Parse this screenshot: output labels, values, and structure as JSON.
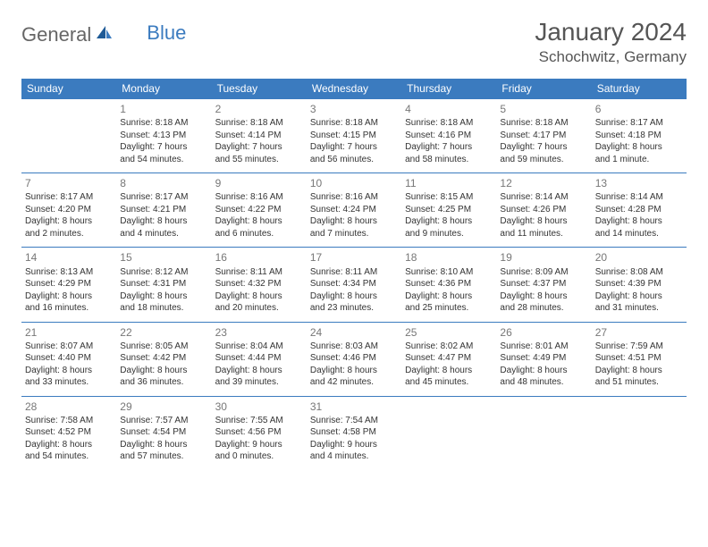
{
  "logo": {
    "general": "General",
    "blue": "Blue"
  },
  "title": "January 2024",
  "location": "Schochwitz, Germany",
  "colors": {
    "header_bg": "#3b7bbf",
    "header_text": "#ffffff",
    "border": "#3b7bbf",
    "body_text": "#333333",
    "daynum": "#777777"
  },
  "days": [
    "Sunday",
    "Monday",
    "Tuesday",
    "Wednesday",
    "Thursday",
    "Friday",
    "Saturday"
  ],
  "weeks": [
    [
      null,
      {
        "n": "1",
        "sr": "8:18 AM",
        "ss": "4:13 PM",
        "dl": "7 hours and 54 minutes."
      },
      {
        "n": "2",
        "sr": "8:18 AM",
        "ss": "4:14 PM",
        "dl": "7 hours and 55 minutes."
      },
      {
        "n": "3",
        "sr": "8:18 AM",
        "ss": "4:15 PM",
        "dl": "7 hours and 56 minutes."
      },
      {
        "n": "4",
        "sr": "8:18 AM",
        "ss": "4:16 PM",
        "dl": "7 hours and 58 minutes."
      },
      {
        "n": "5",
        "sr": "8:18 AM",
        "ss": "4:17 PM",
        "dl": "7 hours and 59 minutes."
      },
      {
        "n": "6",
        "sr": "8:17 AM",
        "ss": "4:18 PM",
        "dl": "8 hours and 1 minute."
      }
    ],
    [
      {
        "n": "7",
        "sr": "8:17 AM",
        "ss": "4:20 PM",
        "dl": "8 hours and 2 minutes."
      },
      {
        "n": "8",
        "sr": "8:17 AM",
        "ss": "4:21 PM",
        "dl": "8 hours and 4 minutes."
      },
      {
        "n": "9",
        "sr": "8:16 AM",
        "ss": "4:22 PM",
        "dl": "8 hours and 6 minutes."
      },
      {
        "n": "10",
        "sr": "8:16 AM",
        "ss": "4:24 PM",
        "dl": "8 hours and 7 minutes."
      },
      {
        "n": "11",
        "sr": "8:15 AM",
        "ss": "4:25 PM",
        "dl": "8 hours and 9 minutes."
      },
      {
        "n": "12",
        "sr": "8:14 AM",
        "ss": "4:26 PM",
        "dl": "8 hours and 11 minutes."
      },
      {
        "n": "13",
        "sr": "8:14 AM",
        "ss": "4:28 PM",
        "dl": "8 hours and 14 minutes."
      }
    ],
    [
      {
        "n": "14",
        "sr": "8:13 AM",
        "ss": "4:29 PM",
        "dl": "8 hours and 16 minutes."
      },
      {
        "n": "15",
        "sr": "8:12 AM",
        "ss": "4:31 PM",
        "dl": "8 hours and 18 minutes."
      },
      {
        "n": "16",
        "sr": "8:11 AM",
        "ss": "4:32 PM",
        "dl": "8 hours and 20 minutes."
      },
      {
        "n": "17",
        "sr": "8:11 AM",
        "ss": "4:34 PM",
        "dl": "8 hours and 23 minutes."
      },
      {
        "n": "18",
        "sr": "8:10 AM",
        "ss": "4:36 PM",
        "dl": "8 hours and 25 minutes."
      },
      {
        "n": "19",
        "sr": "8:09 AM",
        "ss": "4:37 PM",
        "dl": "8 hours and 28 minutes."
      },
      {
        "n": "20",
        "sr": "8:08 AM",
        "ss": "4:39 PM",
        "dl": "8 hours and 31 minutes."
      }
    ],
    [
      {
        "n": "21",
        "sr": "8:07 AM",
        "ss": "4:40 PM",
        "dl": "8 hours and 33 minutes."
      },
      {
        "n": "22",
        "sr": "8:05 AM",
        "ss": "4:42 PM",
        "dl": "8 hours and 36 minutes."
      },
      {
        "n": "23",
        "sr": "8:04 AM",
        "ss": "4:44 PM",
        "dl": "8 hours and 39 minutes."
      },
      {
        "n": "24",
        "sr": "8:03 AM",
        "ss": "4:46 PM",
        "dl": "8 hours and 42 minutes."
      },
      {
        "n": "25",
        "sr": "8:02 AM",
        "ss": "4:47 PM",
        "dl": "8 hours and 45 minutes."
      },
      {
        "n": "26",
        "sr": "8:01 AM",
        "ss": "4:49 PM",
        "dl": "8 hours and 48 minutes."
      },
      {
        "n": "27",
        "sr": "7:59 AM",
        "ss": "4:51 PM",
        "dl": "8 hours and 51 minutes."
      }
    ],
    [
      {
        "n": "28",
        "sr": "7:58 AM",
        "ss": "4:52 PM",
        "dl": "8 hours and 54 minutes."
      },
      {
        "n": "29",
        "sr": "7:57 AM",
        "ss": "4:54 PM",
        "dl": "8 hours and 57 minutes."
      },
      {
        "n": "30",
        "sr": "7:55 AM",
        "ss": "4:56 PM",
        "dl": "9 hours and 0 minutes."
      },
      {
        "n": "31",
        "sr": "7:54 AM",
        "ss": "4:58 PM",
        "dl": "9 hours and 4 minutes."
      },
      null,
      null,
      null
    ]
  ],
  "labels": {
    "sunrise": "Sunrise:",
    "sunset": "Sunset:",
    "daylight": "Daylight:"
  }
}
